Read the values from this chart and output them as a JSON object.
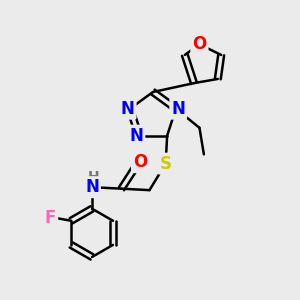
{
  "bg_color": "#ebebeb",
  "bond_color": "#000000",
  "bond_width": 1.8,
  "atom_colors": {
    "N": "#0000ff",
    "O": "#ff0000",
    "S": "#cccc00",
    "F": "#ff69b4",
    "H": "#777777",
    "C": "#000000"
  },
  "font_size": 11
}
